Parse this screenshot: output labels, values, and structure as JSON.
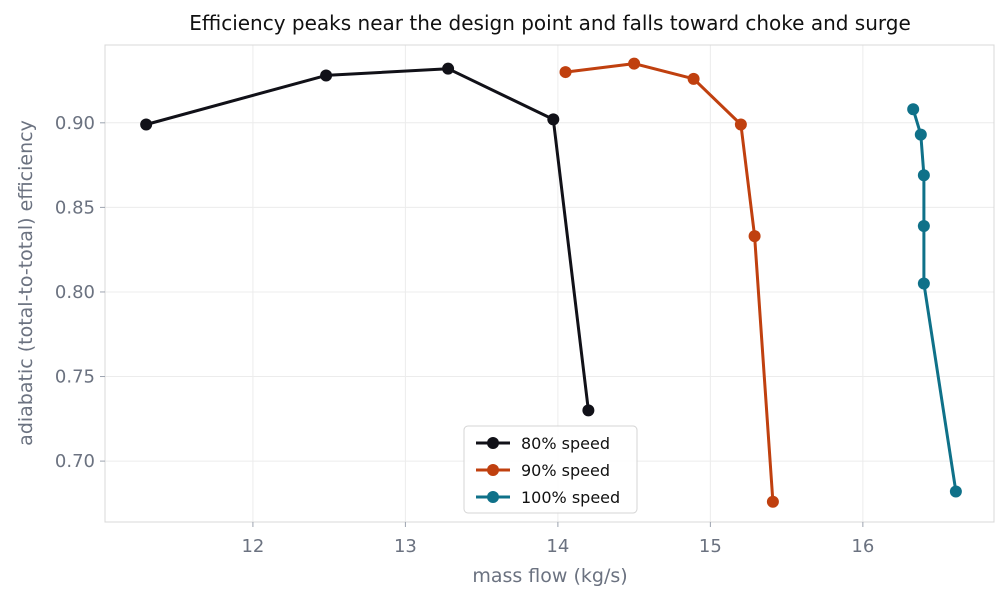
{
  "colors": {
    "background": "#ffffff",
    "grid": "#ececec",
    "axis_text": "#6b7280"
  },
  "chart_data": {
    "type": "line",
    "title": "Efficiency peaks near the design point and falls toward choke and surge",
    "xlabel": "mass flow (kg/s)",
    "ylabel": "adiabatic (total-to-total) efficiency",
    "xlim": [
      11.03,
      16.86
    ],
    "ylim": [
      0.664,
      0.946
    ],
    "xticks": [
      12,
      13,
      14,
      15,
      16
    ],
    "xtick_labels": [
      "12",
      "13",
      "14",
      "15",
      "16"
    ],
    "yticks": [
      0.7,
      0.75,
      0.8,
      0.85,
      0.9
    ],
    "ytick_labels": [
      "0.70",
      "0.75",
      "0.80",
      "0.85",
      "0.90"
    ],
    "grid": true,
    "legend_position": "bottom-center",
    "series": [
      {
        "name": "80% speed",
        "color": "#111118",
        "x": [
          11.3,
          12.48,
          13.28,
          13.97,
          14.2
        ],
        "y": [
          0.899,
          0.928,
          0.932,
          0.902,
          0.73
        ]
      },
      {
        "name": "90% speed",
        "color": "#c0400f",
        "x": [
          14.05,
          14.5,
          14.89,
          15.2,
          15.29,
          15.41
        ],
        "y": [
          0.93,
          0.935,
          0.926,
          0.899,
          0.833,
          0.676
        ]
      },
      {
        "name": "100% speed",
        "color": "#0f7189",
        "x": [
          16.33,
          16.38,
          16.4,
          16.4,
          16.4,
          16.61
        ],
        "y": [
          0.908,
          0.893,
          0.869,
          0.839,
          0.805,
          0.682
        ]
      }
    ]
  }
}
